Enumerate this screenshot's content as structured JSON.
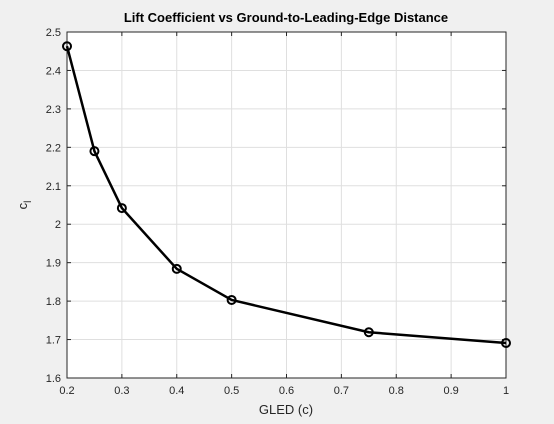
{
  "chart_data": {
    "type": "line",
    "title": "Lift Coefficient vs Ground-to-Leading-Edge Distance",
    "xlabel": "GLED (c)",
    "ylabel_main": "c",
    "ylabel_sub": "l",
    "xlim": [
      0.2,
      1.0
    ],
    "ylim": [
      1.6,
      2.5
    ],
    "x_ticks": [
      "0.2",
      "0.3",
      "0.4",
      "0.5",
      "0.6",
      "0.7",
      "0.8",
      "0.9",
      "1"
    ],
    "y_ticks": [
      "1.6",
      "1.7",
      "1.8",
      "1.9",
      "2",
      "2.1",
      "2.2",
      "2.3",
      "2.4",
      "2.5"
    ],
    "grid": true,
    "series": [
      {
        "x": [
          0.2,
          0.25,
          0.3,
          0.4,
          0.5,
          0.75,
          1.0
        ],
        "y": [
          2.463,
          2.19,
          2.042,
          1.884,
          1.803,
          1.719,
          1.691
        ],
        "color": "#000000",
        "marker": "circle"
      }
    ]
  }
}
